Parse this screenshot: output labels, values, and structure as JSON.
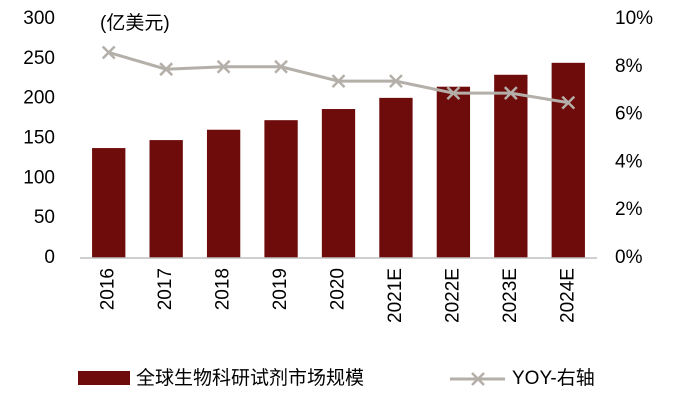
{
  "chart_data": {
    "type": "bar",
    "annotation": "(亿美元)",
    "categories": [
      "2016",
      "2017",
      "2018",
      "2019",
      "2020",
      "2021E",
      "2022E",
      "2023E",
      "2024E"
    ],
    "series": [
      {
        "name": "全球生物科研试剂市场规模",
        "type": "bar",
        "color": "#6e0b0b",
        "values": [
          138,
          148,
          161,
          173,
          187,
          201,
          215,
          230,
          245
        ]
      },
      {
        "name": "YOY-右轴",
        "type": "line",
        "axis": "y2",
        "color": "#b4afa8",
        "values": [
          8.6,
          7.9,
          8.0,
          8.0,
          7.4,
          7.4,
          6.9,
          6.9,
          6.5
        ]
      }
    ],
    "ylim": [
      0,
      300
    ],
    "yticks": [
      0,
      50,
      100,
      150,
      200,
      250,
      300
    ],
    "y2lim": [
      0,
      10
    ],
    "y2ticks": [
      {
        "value": 0,
        "label": "0%"
      },
      {
        "value": 2,
        "label": "2%"
      },
      {
        "value": 4,
        "label": "4%"
      },
      {
        "value": 6,
        "label": "6%"
      },
      {
        "value": 8,
        "label": "8%"
      },
      {
        "value": 10,
        "label": "10%"
      }
    ]
  }
}
